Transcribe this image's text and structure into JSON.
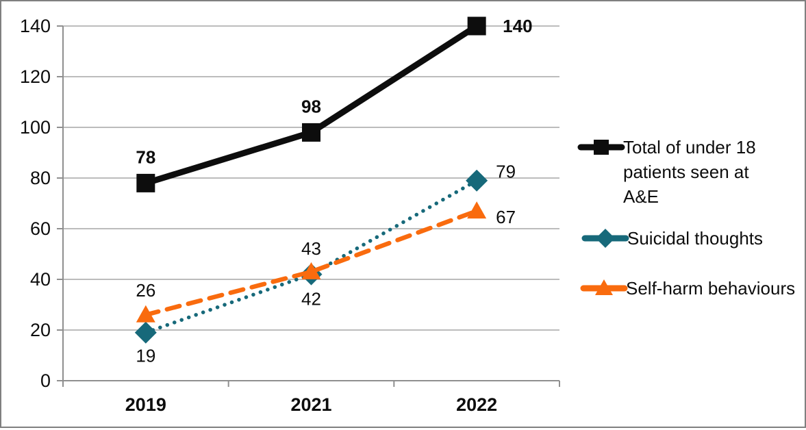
{
  "chart_data": {
    "type": "line",
    "title": "",
    "xlabel": "",
    "ylabel": "",
    "categories": [
      "2019",
      "2021",
      "2022"
    ],
    "series": [
      {
        "name": "Total of under 18 patients seen at A&E",
        "name_lines": [
          "Total of under 18",
          "patients seen at",
          "A&E"
        ],
        "values": [
          78,
          98,
          140
        ],
        "data_labels": [
          "78",
          "98",
          "140"
        ],
        "color": "#0d0d0d",
        "line_style": "solid",
        "marker": "square",
        "labels_bold": true
      },
      {
        "name": "Suicidal thoughts",
        "name_lines": [
          "Suicidal thoughts"
        ],
        "values": [
          19,
          42,
          79
        ],
        "data_labels": [
          "19",
          "42",
          "79"
        ],
        "color": "#17697A",
        "line_style": "dotted",
        "marker": "diamond",
        "labels_bold": false
      },
      {
        "name": "Self-harm behaviours",
        "name_lines": [
          "Self-harm behaviours"
        ],
        "values": [
          26,
          43,
          67
        ],
        "data_labels": [
          "26",
          "43",
          "67"
        ],
        "color": "#F96B0E",
        "line_style": "dashed",
        "marker": "triangle",
        "labels_bold": false
      }
    ],
    "ylim": [
      0,
      140
    ],
    "ytick_step": 20,
    "ytick_labels": [
      "0",
      "20",
      "40",
      "60",
      "80",
      "100",
      "120",
      "140"
    ],
    "grid": true,
    "legend_position": "right",
    "colors": {
      "gridline": "#A6A6A6",
      "axis": "#8f8f8f",
      "text": "#0d0d0d",
      "frame_border": "#7f7f7f",
      "background": "#ffffff"
    }
  }
}
